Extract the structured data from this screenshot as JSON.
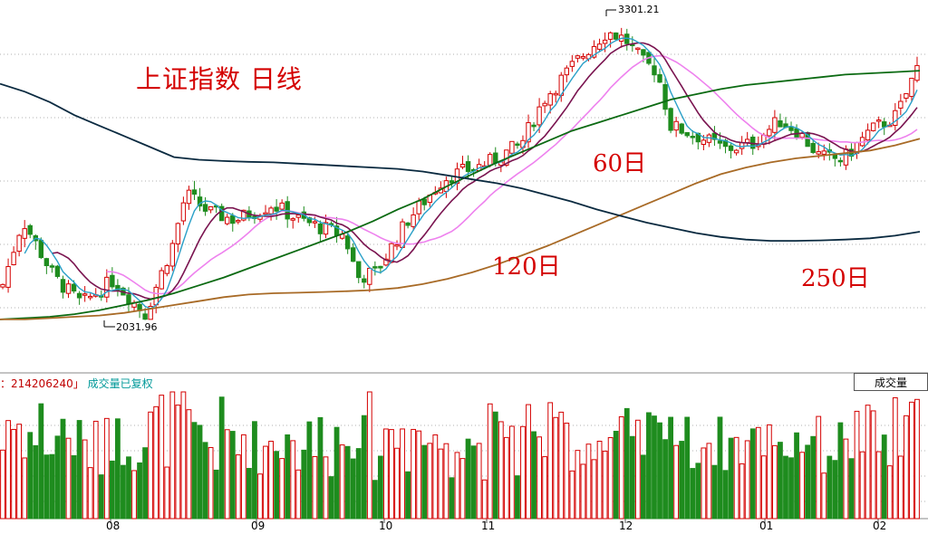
{
  "title": "上证指数 日线",
  "ma_labels": [
    "60日",
    "120日",
    "250日"
  ],
  "annotations": {
    "high": "3301.21",
    "low": "2031.96"
  },
  "volume_panel": {
    "value_prefix": "：",
    "value": "214206240",
    "sep": "」",
    "note": "成交量已复权",
    "button": "成交量"
  },
  "colors": {
    "up": "#d40000",
    "down": "#1e8c1e",
    "ma5": "#2aa0c8",
    "ma10": "#7a1450",
    "ma20": "#ee82ee",
    "ma60": "#0b6a12",
    "ma120": "#a86a26",
    "ma250": "#0a2a40"
  },
  "chart_data": {
    "type": "candlestick",
    "title": "上证指数 日线",
    "x_ticks": [
      "08",
      "09",
      "10",
      "11",
      "12",
      "01",
      "02"
    ],
    "price_range": [
      2000,
      3400
    ],
    "high": 3301.21,
    "low": 2031.96,
    "series": [
      {
        "name": "60日",
        "values": [
          2180,
          2185,
          2190,
          2200,
          2215,
          2235,
          2255,
          2280,
          2310,
          2340,
          2375,
          2410,
          2445,
          2480,
          2515,
          2555,
          2600,
          2640,
          2690,
          2735,
          2780,
          2820,
          2860,
          2900,
          2930,
          2960,
          2990,
          3020,
          3040,
          3060,
          3075,
          3085,
          3095,
          3105,
          3115,
          3120,
          3125,
          3130
        ]
      },
      {
        "name": "120日",
        "values": [
          2180,
          2180,
          2185,
          2190,
          2195,
          2205,
          2220,
          2235,
          2250,
          2265,
          2275,
          2280,
          2282,
          2285,
          2288,
          2292,
          2300,
          2315,
          2335,
          2360,
          2390,
          2425,
          2460,
          2500,
          2540,
          2580,
          2620,
          2660,
          2700,
          2735,
          2760,
          2780,
          2795,
          2805,
          2815,
          2825,
          2845,
          2870
        ]
      },
      {
        "name": "250日",
        "values": [
          3080,
          3050,
          3010,
          2960,
          2920,
          2880,
          2840,
          2800,
          2790,
          2785,
          2782,
          2780,
          2775,
          2770,
          2765,
          2760,
          2755,
          2745,
          2730,
          2715,
          2700,
          2680,
          2655,
          2630,
          2600,
          2575,
          2550,
          2530,
          2510,
          2495,
          2485,
          2480,
          2480,
          2482,
          2485,
          2490,
          2500,
          2515
        ]
      }
    ]
  }
}
